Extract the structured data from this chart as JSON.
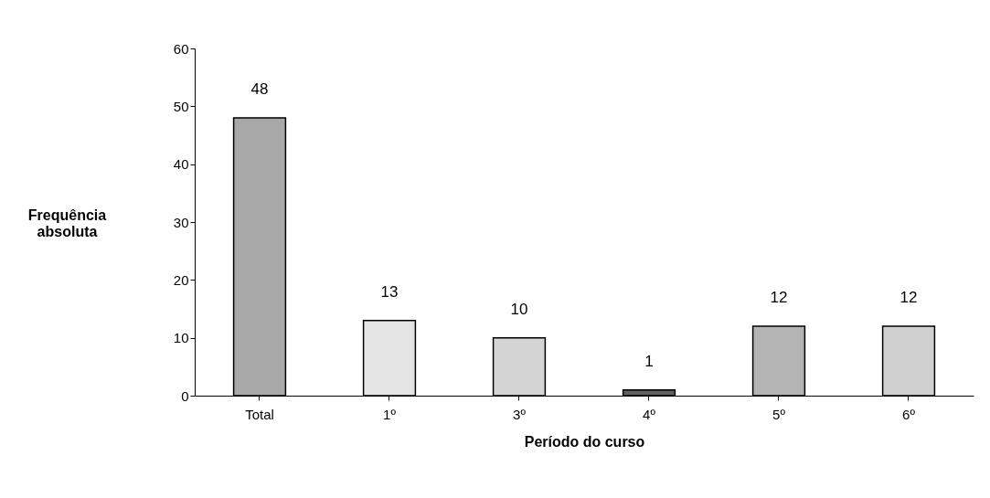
{
  "chart_data": {
    "type": "bar",
    "xlabel": "Período do curso",
    "ylabel": "Frequência absoluta",
    "categories": [
      "Total",
      "1º",
      "3º",
      "4º",
      "5º",
      "6º"
    ],
    "values": [
      48,
      13,
      10,
      1,
      12,
      12
    ],
    "colors": [
      "#a8a8a8",
      "#e4e4e4",
      "#d4d4d4",
      "#606060",
      "#b4b4b4",
      "#d0d0d0"
    ],
    "ylim": [
      0,
      60
    ],
    "yticks": [
      0,
      10,
      20,
      30,
      40,
      50,
      60
    ],
    "grid": false,
    "data_labels": true
  }
}
